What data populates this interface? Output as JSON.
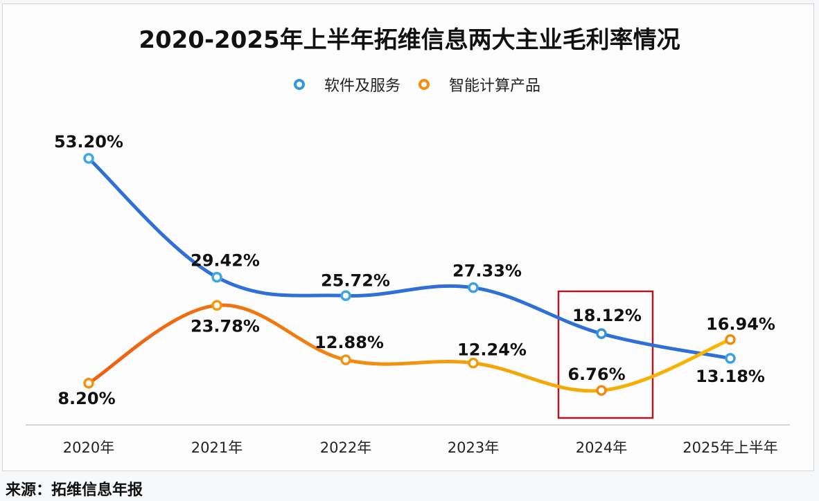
{
  "chart_data": {
    "type": "line",
    "title": "2020-2025年上半年拓维信息两大主业毛利率情况",
    "categories": [
      "2020年",
      "2021年",
      "2022年",
      "2023年",
      "2024年",
      "2025年上半年"
    ],
    "series": [
      {
        "name": "软件及服务",
        "values": [
          53.2,
          29.42,
          25.72,
          27.33,
          18.12,
          13.18
        ],
        "labels": [
          "53.20%",
          "29.42%",
          "25.72%",
          "27.33%",
          "18.12%",
          "13.18%"
        ],
        "color_start": "#3fb0e6",
        "color_end": "#2f7fdc"
      },
      {
        "name": "智能计算产品",
        "values": [
          8.2,
          23.78,
          12.88,
          12.24,
          6.76,
          16.94
        ],
        "labels": [
          "8.20%",
          "23.78%",
          "12.88%",
          "12.24%",
          "6.76%",
          "16.94%"
        ],
        "color_start": "#ef6a12",
        "color_end": "#f7b500"
      }
    ],
    "xlabel": "",
    "ylabel": "",
    "ylim": [
      0,
      55
    ],
    "grid": false,
    "legend_position": "top-center",
    "highlight": {
      "category": "2024年",
      "color": "#b0171f"
    }
  },
  "source": "来源：拓维信息年报"
}
